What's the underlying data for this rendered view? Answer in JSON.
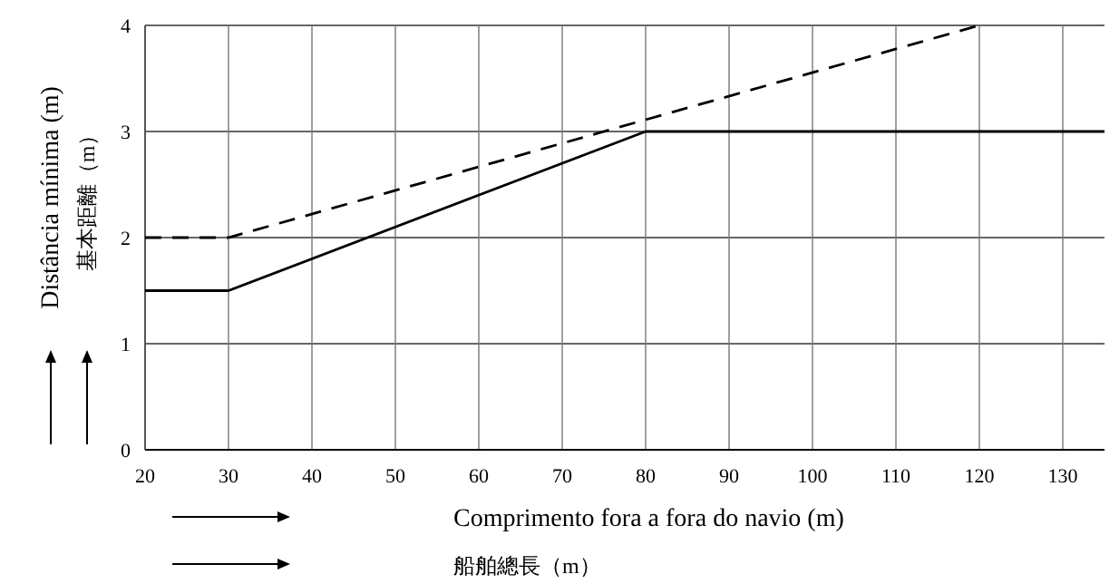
{
  "chart_data": {
    "type": "line",
    "xlabel": "Comprimento fora a fora do navio (m)\n船舶總長（m）",
    "ylabel": "Distância mínima (m)\n基本距離（m）",
    "xlim": [
      20,
      135
    ],
    "ylim": [
      0,
      4
    ],
    "xticks": [
      20,
      30,
      40,
      50,
      60,
      70,
      80,
      90,
      100,
      110,
      120,
      130
    ],
    "yticks": [
      0,
      1,
      2,
      3,
      4
    ],
    "grid": true,
    "series": [
      {
        "color": "#000000",
        "line_style": "solid",
        "x": [
          20,
          30,
          80,
          135
        ],
        "values": [
          1.5,
          1.5,
          3,
          3
        ]
      },
      {
        "color": "#000000",
        "line_style": "dashed",
        "x": [
          20,
          30,
          120
        ],
        "values": [
          2,
          2,
          4
        ]
      }
    ]
  }
}
